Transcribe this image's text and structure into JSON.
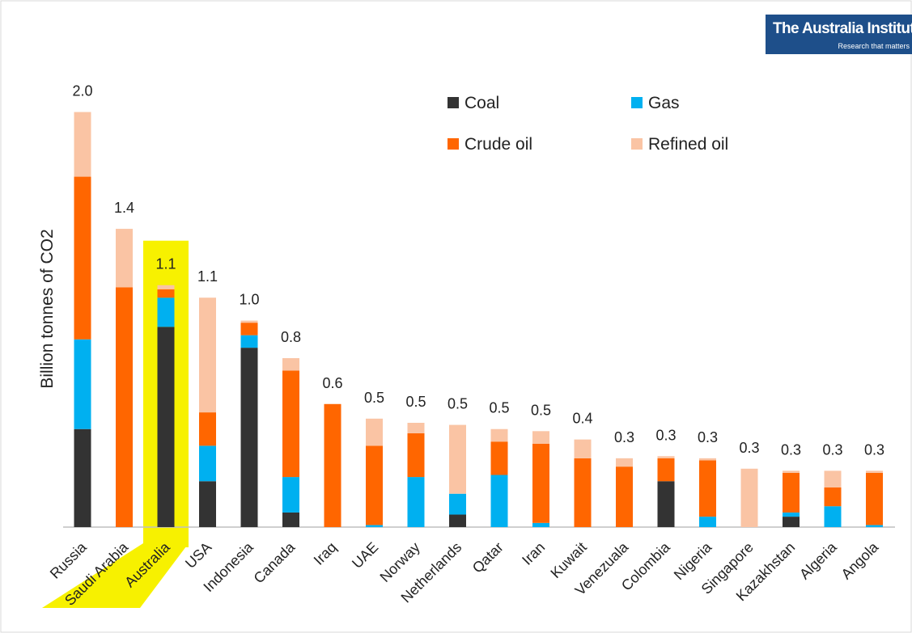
{
  "logo": {
    "name": "The Australia Institute",
    "tagline": "Research that matters"
  },
  "chart_data": {
    "type": "bar",
    "stacked": true,
    "ylabel": "Billion tonnes of CO2",
    "ylim": [
      0,
      2.2
    ],
    "highlight": "Australia",
    "highlight_color": "#f7f100",
    "legend_position": "top-right",
    "categories": [
      "Russia",
      "Saudi Arabia",
      "Australia",
      "USA",
      "Indonesia",
      "Canada",
      "Iraq",
      "UAE",
      "Norway",
      "Netherlands",
      "Qatar",
      "Iran",
      "Kuwait",
      "Venezuala",
      "Colombia",
      "Nigeria",
      "Singapore",
      "Kazakhstan",
      "Algeria",
      "Angola"
    ],
    "totals_labels": [
      "2.0",
      "1.4",
      "1.1",
      "1.1",
      "1.0",
      "0.8",
      "0.6",
      "0.5",
      "0.5",
      "0.5",
      "0.5",
      "0.5",
      "0.4",
      "0.3",
      "0.3",
      "0.3",
      "0.3",
      "0.3",
      "0.3",
      "0.3"
    ],
    "series": [
      {
        "name": "Coal",
        "color": "#333333",
        "values": [
          0.47,
          0,
          0.96,
          0.22,
          0.86,
          0.07,
          0,
          0,
          0,
          0.06,
          0,
          0,
          0,
          0,
          0.22,
          0,
          0,
          0.05,
          0,
          0
        ]
      },
      {
        "name": "Gas",
        "color": "#00b0f0",
        "values": [
          0.43,
          0,
          0.14,
          0.17,
          0.06,
          0.17,
          0,
          0.01,
          0.24,
          0.1,
          0.25,
          0.02,
          0,
          0,
          0,
          0.05,
          0,
          0.02,
          0.1,
          0.01
        ]
      },
      {
        "name": "Crude oil",
        "color": "#ff6600",
        "values": [
          0.78,
          1.15,
          0.04,
          0.16,
          0.06,
          0.51,
          0.59,
          0.38,
          0.21,
          0,
          0.16,
          0.38,
          0.33,
          0.29,
          0.11,
          0.27,
          0,
          0.19,
          0.09,
          0.25
        ]
      },
      {
        "name": "Refined oil",
        "color": "#fac4a4",
        "values": [
          0.31,
          0.28,
          0.02,
          0.55,
          0.01,
          0.06,
          0,
          0.13,
          0.05,
          0.33,
          0.06,
          0.06,
          0.09,
          0.04,
          0.01,
          0.01,
          0.28,
          0.01,
          0.08,
          0.01
        ]
      }
    ]
  }
}
